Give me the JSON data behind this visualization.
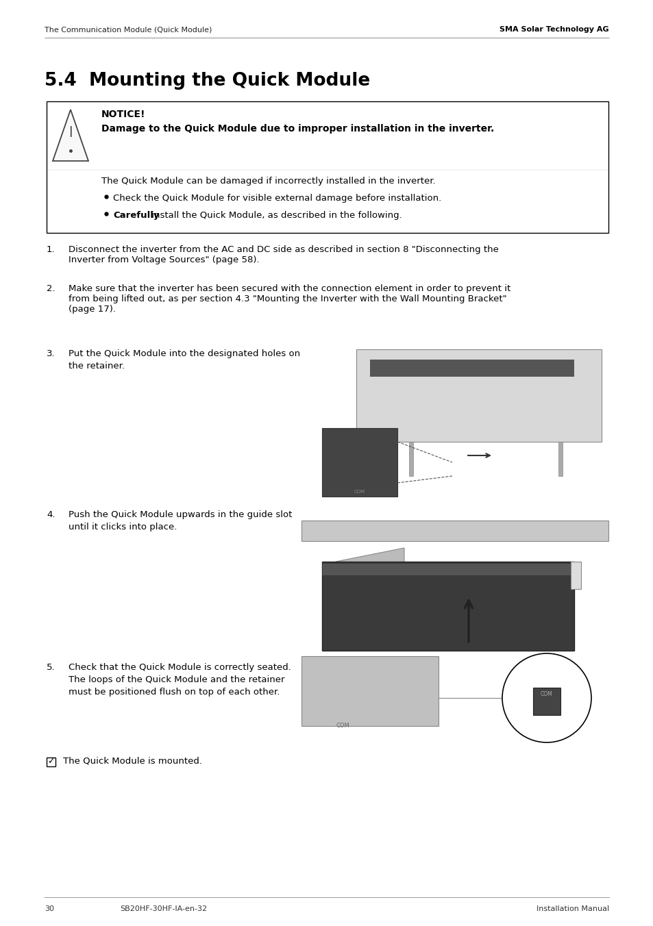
{
  "header_left": "The Communication Module (Quick Module)",
  "header_right": "SMA Solar Technology AG",
  "title": "5.4  Mounting the Quick Module",
  "notice_title": "NOTICE!",
  "notice_subtitle": "Damage to the Quick Module due to improper installation in the inverter.",
  "notice_body": "The Quick Module can be damaged if incorrectly installed in the inverter.",
  "notice_bullet1": "Check the Quick Module for visible external damage before installation.",
  "notice_bullet2_bold": "Carefully",
  "notice_bullet2_rest": " install the Quick Module, as described in the following.",
  "step1": "Disconnect the inverter from the AC and DC side as described in section 8 \"Disconnecting the\nInverter from Voltage Sources\" (page 58).",
  "step2": "Make sure that the inverter has been secured with the connection element in order to prevent it\nfrom being lifted out, as per section 4.3 \"Mounting the Inverter with the Wall Mounting Bracket\"\n(page 17).",
  "step3a": "Put the Quick Module into the designated holes on",
  "step3b": "the retainer.",
  "step4a": "Push the Quick Module upwards in the guide slot",
  "step4b": "until it clicks into place.",
  "step5a": "Check that the Quick Module is correctly seated.",
  "step5b": "The loops of the Quick Module and the retainer",
  "step5c": "must be positioned flush on top of each other.",
  "checkmark_text": "The Quick Module is mounted.",
  "footer_page": "30",
  "footer_code": "SB20HF-30HF-IA-en-32",
  "footer_right": "Installation Manual",
  "bg_color": "#ffffff",
  "text_color": "#000000"
}
